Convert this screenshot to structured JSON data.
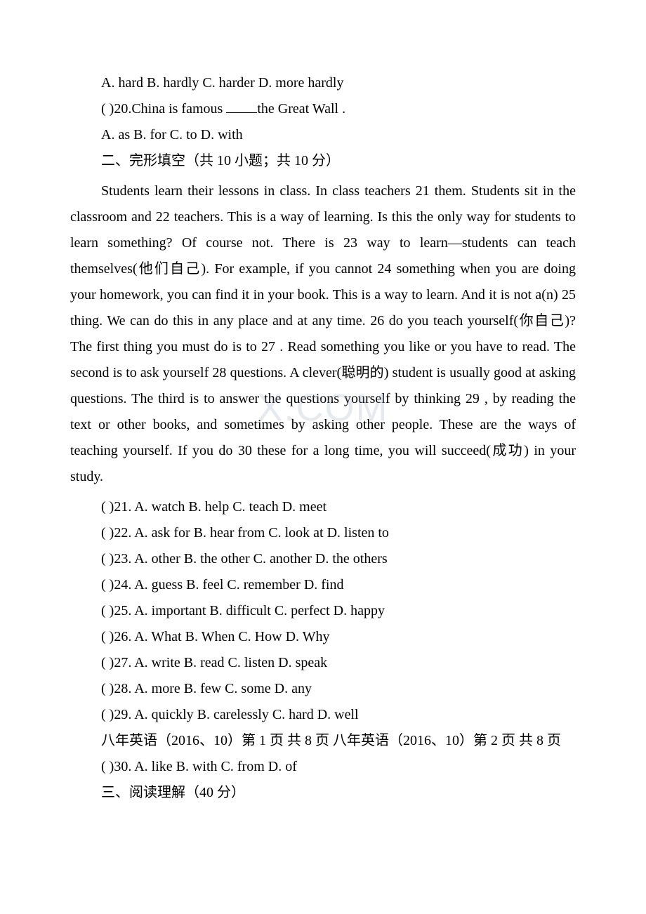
{
  "text_color": "#000000",
  "background_color": "#ffffff",
  "watermark_text": "X.COM",
  "watermark_color": "rgba(150,170,200,0.25)",
  "body_fontsize": 20,
  "line_height": 1.85,
  "q19": {
    "options": "A. hard   B. hardly  C. harder  D. more hardly"
  },
  "q20": {
    "stem_prefix": "( )20.China is famous ",
    "stem_suffix": "the Great Wall .",
    "options": "A. as   B. for  C. to   D. with"
  },
  "section2_title": "二、完形填空（共 10 小题；共 10 分）",
  "passage": "Students learn their lessons in class. In class teachers  21   them. Students sit in the classroom and  22   teachers. This is a way of learning. Is this the only way for students to learn something? Of course not. There is  23   way to learn—students can teach themselves(他们自己). For example, if you cannot  24   something when you are doing your homework, you can find it in your book. This is a way to learn. And it is not a(n)  25   thing. We can do this in any place and at any time.  26   do you teach yourself(你自己)? The first thing you must do is to  27  . Read something you like or you have to read. The second is to ask yourself  28   questions. A clever(聪明的) student is usually good at asking questions. The third is to answer the questions yourself by thinking  29  , by reading the text or other books, and sometimes by asking other people. These are the ways of teaching yourself. If you do  30   these for a long time, you will succeed(成功) in your study.",
  "cloze_options": {
    "q21": "(     )21. A. watch  B. help  C. teach  D. meet",
    "q22": "(     )22. A. ask for  B. hear from  C. look at  D. listen to",
    "q23": "(     )23. A. other  B. the other  C. another  D. the others",
    "q24": "(     )24. A. guess  B. feel  C. remember D. find",
    "q25": "(     )25. A. important  B. difficult  C. perfect  D. happy",
    "q26": "(     )26. A. What  B. When  C. How  D. Why",
    "q27": "(     )27. A. write  B. read  C. listen  D. speak",
    "q28": "(     )28. A. more B. few  C. some  D. any",
    "q29": "(     )29. A. quickly  B. carelessly  C. hard  D. well"
  },
  "footer_text": "八年英语（2016、10）第 1 页 共 8 页  八年英语（2016、10）第 2 页 共 8 页",
  "q30": "(     )30. A. like  B. with  C. from  D. of",
  "section3_title": "三、阅读理解（40 分）"
}
